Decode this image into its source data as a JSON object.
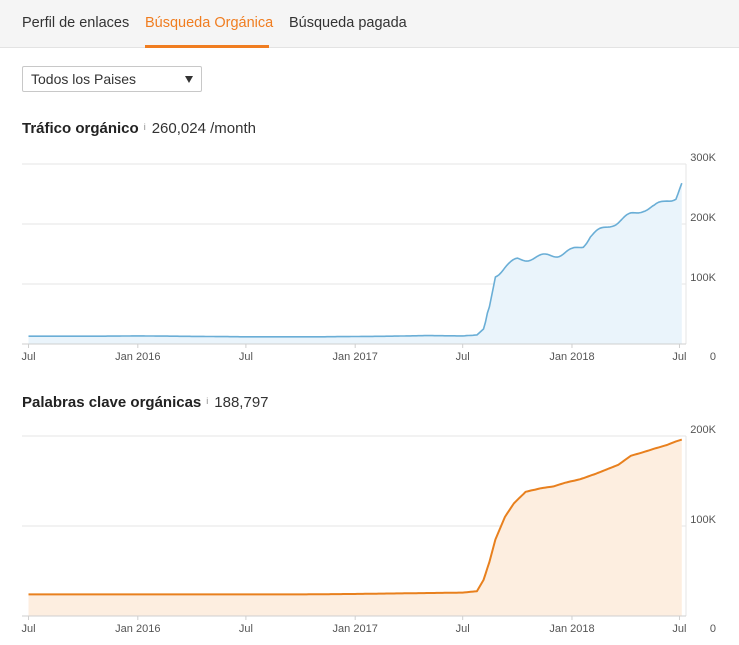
{
  "tabs": [
    {
      "label": "Perfil de enlaces",
      "active": false
    },
    {
      "label": "Búsqueda Orgánica",
      "active": true
    },
    {
      "label": "Búsqueda pagada",
      "active": false
    }
  ],
  "country_select": {
    "value": "Todos los Paises"
  },
  "colors": {
    "accent": "#f07d20",
    "traffic_line": "#6aaed6",
    "traffic_fill": "#eaf4fb",
    "keywords_line": "#e8801e",
    "keywords_fill": "#fdeee0",
    "grid": "#e6e6e6"
  },
  "traffic": {
    "title": "Tráfico orgánico",
    "info": "i",
    "value": "260,024 /month"
  },
  "keywords": {
    "title": "Palabras clave orgánicas",
    "info": "i",
    "value": "188,797"
  },
  "chart_data": [
    {
      "type": "area",
      "title": "Tráfico orgánico",
      "x": [
        "2015-07-01",
        "2015-09-01",
        "2015-11-01",
        "2016-01-01",
        "2016-03-01",
        "2016-05-01",
        "2016-07-01",
        "2016-09-01",
        "2016-11-01",
        "2017-01-01",
        "2017-03-01",
        "2017-05-01",
        "2017-07-01",
        "2017-07-25",
        "2017-08-05",
        "2017-08-15",
        "2017-08-25",
        "2017-09-10",
        "2017-10-01",
        "2017-10-20",
        "2017-11-10",
        "2017-12-01",
        "2017-12-20",
        "2018-01-01",
        "2018-01-20",
        "2018-02-01",
        "2018-02-20",
        "2018-03-10",
        "2018-04-01",
        "2018-04-20",
        "2018-05-01",
        "2018-05-20",
        "2018-06-10",
        "2018-06-25",
        "2018-07-05"
      ],
      "values": [
        13000,
        13000,
        13000,
        13500,
        13000,
        12500,
        12000,
        12000,
        12000,
        12500,
        13000,
        14000,
        13500,
        15000,
        25000,
        60000,
        115000,
        128000,
        140000,
        143000,
        145000,
        148000,
        152000,
        155000,
        165000,
        180000,
        190000,
        200000,
        210000,
        220000,
        225000,
        228000,
        240000,
        245000,
        268000
      ],
      "x_tick_labels": [
        "Jul",
        "Jan 2016",
        "Jul",
        "Jan 2017",
        "Jul",
        "Jan 2018",
        "Jul"
      ],
      "x_ticks": [
        "2015-07-01",
        "2016-01-01",
        "2016-07-01",
        "2017-01-01",
        "2017-07-01",
        "2018-01-01",
        "2018-07-01"
      ],
      "y_tick_labels": [
        "0",
        "100K",
        "200K",
        "300K"
      ],
      "y_ticks": [
        0,
        100000,
        200000,
        300000
      ],
      "ylim": [
        0,
        300000
      ],
      "grid": true
    },
    {
      "type": "area",
      "title": "Palabras clave orgánicas",
      "x": [
        "2015-07-01",
        "2015-10-01",
        "2016-01-01",
        "2016-04-01",
        "2016-07-01",
        "2016-10-01",
        "2017-01-01",
        "2017-03-01",
        "2017-05-01",
        "2017-07-01",
        "2017-07-25",
        "2017-08-05",
        "2017-08-15",
        "2017-08-25",
        "2017-09-10",
        "2017-09-25",
        "2017-10-15",
        "2017-11-10",
        "2017-12-01",
        "2017-12-20",
        "2018-01-15",
        "2018-02-10",
        "2018-03-01",
        "2018-03-20",
        "2018-04-10",
        "2018-05-01",
        "2018-05-20",
        "2018-06-10",
        "2018-06-25",
        "2018-07-05"
      ],
      "values": [
        24000,
        24000,
        24000,
        24000,
        24000,
        24000,
        24500,
        25000,
        25500,
        26000,
        27500,
        40000,
        60000,
        85000,
        110000,
        125000,
        138000,
        142000,
        144000,
        148000,
        152000,
        158000,
        163000,
        168000,
        178000,
        182000,
        186000,
        190000,
        194000,
        196000
      ],
      "x_tick_labels": [
        "Jul",
        "Jan 2016",
        "Jul",
        "Jan 2017",
        "Jul",
        "Jan 2018",
        "Jul"
      ],
      "x_ticks": [
        "2015-07-01",
        "2016-01-01",
        "2016-07-01",
        "2017-01-01",
        "2017-07-01",
        "2018-01-01",
        "2018-07-01"
      ],
      "y_tick_labels": [
        "0",
        "100K",
        "200K"
      ],
      "y_ticks": [
        0,
        100000,
        200000
      ],
      "ylim": [
        0,
        200000
      ],
      "grid": true
    }
  ]
}
